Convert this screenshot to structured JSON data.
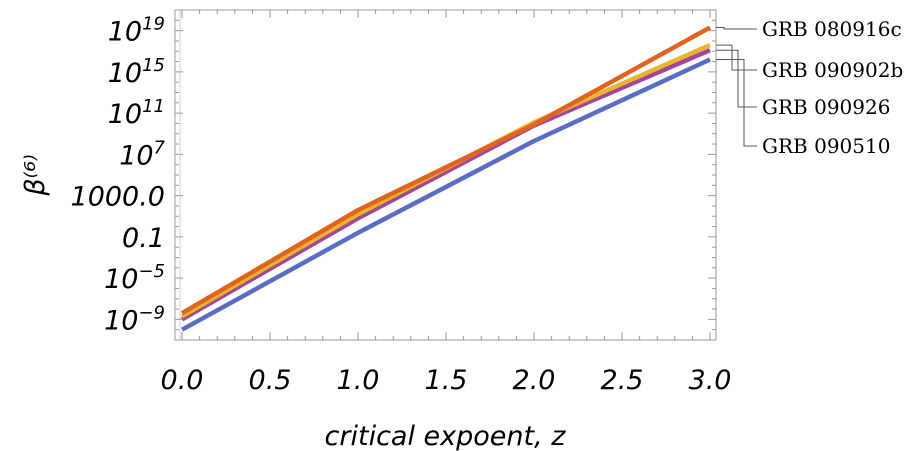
{
  "chart_data": {
    "type": "line",
    "title": "",
    "xlabel": "critical expoent,  z",
    "ylabel": "β⁽⁶⁾",
    "yscale": "log",
    "xlim": [
      0,
      3
    ],
    "ylim_log10": [
      -11,
      21
    ],
    "grid": false,
    "legend_placement": "right",
    "x_ticks": [
      0.0,
      0.5,
      1.0,
      1.5,
      2.0,
      2.5,
      3.0
    ],
    "x_tick_labels": [
      "0.0",
      "0.5",
      "1.0",
      "1.5",
      "2.0",
      "2.5",
      "3.0"
    ],
    "y_ticks_log10": [
      -9,
      -5,
      -1,
      3,
      7,
      11,
      15,
      19
    ],
    "y_tick_labels": [
      {
        "base": "10",
        "exp": "−9"
      },
      {
        "base": "10",
        "exp": "−5"
      },
      {
        "base": "0.1",
        "exp": ""
      },
      {
        "base": "1000.0",
        "exp": ""
      },
      {
        "base": "10",
        "exp": "7"
      },
      {
        "base": "10",
        "exp": "11"
      },
      {
        "base": "10",
        "exp": "15"
      },
      {
        "base": "10",
        "exp": "19"
      }
    ],
    "series": [
      {
        "name": "GRB 080916c",
        "color": "#e0641f",
        "x": [
          0,
          1,
          2,
          3
        ],
        "log10_y": [
          -8.4,
          1.6,
          9.9,
          19.3
        ]
      },
      {
        "name": "GRB 090902b",
        "color": "#e8b52c",
        "x": [
          0,
          1,
          2,
          3
        ],
        "log10_y": [
          -8.7,
          1.2,
          10.1,
          17.6
        ]
      },
      {
        "name": "GRB 090926",
        "color": "#a1479b",
        "x": [
          0,
          1,
          2,
          3
        ],
        "log10_y": [
          -9.0,
          0.8,
          9.8,
          17.1
        ]
      },
      {
        "name": "GRB 090510",
        "color": "#5a6dc4",
        "x": [
          0,
          1,
          2,
          3
        ],
        "log10_y": [
          -10.0,
          -0.6,
          8.3,
          16.2
        ]
      }
    ]
  }
}
